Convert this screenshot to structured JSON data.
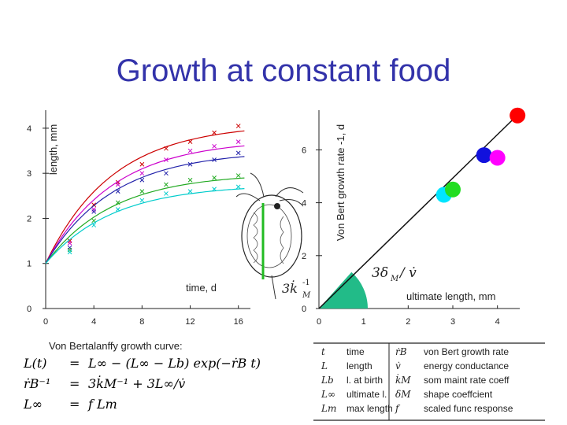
{
  "title": "Growth at constant food",
  "chart_data": [
    {
      "type": "scatter",
      "title": "",
      "xlabel": "time, d",
      "ylabel": "length, mm",
      "xlim": [
        0,
        17
      ],
      "ylim": [
        0,
        4.4
      ],
      "xticks": [
        "0",
        "4",
        "8",
        "12",
        "16"
      ],
      "yticks": [
        "0",
        "1",
        "2",
        "3",
        "4"
      ],
      "series": [
        {
          "color": "#cc0000",
          "linf": 4.1,
          "points": [
            [
              2,
              1.5
            ],
            [
              4,
              2.3
            ],
            [
              6,
              2.8
            ],
            [
              8,
              3.2
            ],
            [
              10,
              3.55
            ],
            [
              12,
              3.7
            ],
            [
              14,
              3.9
            ],
            [
              16,
              4.05
            ]
          ]
        },
        {
          "color": "#cc00cc",
          "linf": 3.75,
          "points": [
            [
              2,
              1.45
            ],
            [
              4,
              2.2
            ],
            [
              6,
              2.75
            ],
            [
              8,
              3.0
            ],
            [
              10,
              3.3
            ],
            [
              12,
              3.5
            ],
            [
              14,
              3.6
            ],
            [
              16,
              3.7
            ]
          ]
        },
        {
          "color": "#2222aa",
          "linf": 3.5,
          "points": [
            [
              2,
              1.35
            ],
            [
              4,
              2.15
            ],
            [
              6,
              2.6
            ],
            [
              8,
              2.85
            ],
            [
              10,
              3.0
            ],
            [
              12,
              3.2
            ],
            [
              14,
              3.3
            ],
            [
              16,
              3.45
            ]
          ]
        },
        {
          "color": "#22aa22",
          "linf": 3.0,
          "points": [
            [
              2,
              1.3
            ],
            [
              4,
              1.95
            ],
            [
              6,
              2.35
            ],
            [
              8,
              2.6
            ],
            [
              10,
              2.75
            ],
            [
              12,
              2.85
            ],
            [
              14,
              2.9
            ],
            [
              16,
              2.95
            ]
          ]
        },
        {
          "color": "#00cccc",
          "linf": 2.75,
          "points": [
            [
              2,
              1.25
            ],
            [
              4,
              1.85
            ],
            [
              6,
              2.2
            ],
            [
              8,
              2.4
            ],
            [
              10,
              2.55
            ],
            [
              12,
              2.6
            ],
            [
              14,
              2.65
            ],
            [
              16,
              2.7
            ]
          ]
        }
      ]
    },
    {
      "type": "scatter",
      "title": "",
      "xlabel": "ultimate length, mm",
      "ylabel": "Von Bert growth rate -1, d",
      "xlim": [
        0,
        4.5
      ],
      "ylim": [
        0,
        7.5
      ],
      "xticks": [
        "0",
        "1",
        "2",
        "3",
        "4"
      ],
      "yticks": [
        "0",
        "2",
        "4",
        "6"
      ],
      "line": [
        [
          0,
          0
        ],
        [
          4.5,
          7.4
        ]
      ],
      "points": [
        {
          "x": 2.8,
          "y": 4.3,
          "color": "#00e5ff"
        },
        {
          "x": 3.0,
          "y": 4.5,
          "color": "#22dd22"
        },
        {
          "x": 3.7,
          "y": 5.8,
          "color": "#1111dd"
        },
        {
          "x": 4.0,
          "y": 5.7,
          "color": "#ff00ff"
        },
        {
          "x": 4.45,
          "y": 7.3,
          "color": "#ff0000"
        }
      ],
      "angle_label": "3δ",
      "angle_label_sub": "M",
      "angle_label_tail": "/ v̇",
      "intercept_label": "3k̇",
      "intercept_label_sup": "-1",
      "intercept_label_sub": "M"
    }
  ],
  "curve_label": "Von Bertalanffy growth curve:",
  "equations": [
    {
      "lhs": "L(t)",
      "rhs": "L∞ − (L∞ − Lb) exp(−ṙB t)"
    },
    {
      "lhs": "ṙB⁻¹",
      "rhs": "3k̇M⁻¹ + 3L∞/v̇"
    },
    {
      "lhs": "L∞",
      "rhs": "f Lm"
    }
  ],
  "legend_table": [
    {
      "sym": "t",
      "desc": "time",
      "sym2": "ṙB",
      "desc2": "von Bert growth rate"
    },
    {
      "sym": "L",
      "desc": "length",
      "sym2": "v̇",
      "desc2": "energy conductance"
    },
    {
      "sym": "Lb",
      "desc": "l. at birth",
      "sym2": "k̇M",
      "desc2": "som maint rate coeff"
    },
    {
      "sym": "L∞",
      "desc": "ultimate l.",
      "sym2": "δM",
      "desc2": "shape coeffcient"
    },
    {
      "sym": "Lm",
      "desc": "max length",
      "sym2": "f",
      "desc2": "scaled func response"
    }
  ]
}
